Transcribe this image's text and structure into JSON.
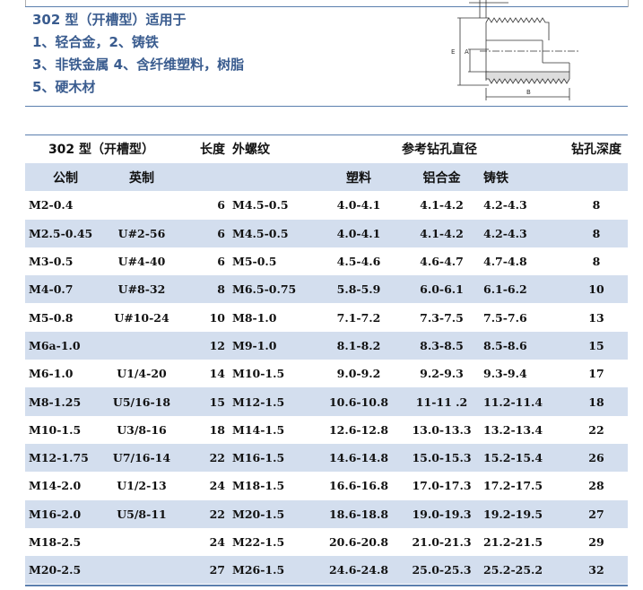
{
  "intro": {
    "lines": [
      "302 型（开槽型）适用于",
      "1、轻合金，2、铸铁",
      "3、非铁金属 4、含纤维塑料，树脂",
      "5、硬木材"
    ]
  },
  "diagram": {
    "labels": {
      "e": "E",
      "a": "A",
      "b": "B"
    }
  },
  "table": {
    "header1": [
      "302 型（开槽型）",
      "长度",
      "外螺纹",
      "参考钻孔直径",
      "钻孔深度"
    ],
    "header2": [
      "公制",
      "英制",
      "",
      "",
      "塑料",
      "铝合金",
      "铸铁",
      ""
    ],
    "rows": [
      [
        "M2-0.4",
        "",
        "6",
        "M4.5-0.5",
        "4.0-4.1",
        "4.1-4.2",
        "4.2-4.3",
        "8"
      ],
      [
        "M2.5-0.45",
        "U#2-56",
        "6",
        "M4.5-0.5",
        "4.0-4.1",
        "4.1-4.2",
        "4.2-4.3",
        "8"
      ],
      [
        "M3-0.5",
        "U#4-40",
        "6",
        "M5-0.5",
        "4.5-4.6",
        "4.6-4.7",
        "4.7-4.8",
        "8"
      ],
      [
        "M4-0.7",
        "U#8-32",
        "8",
        "M6.5-0.75",
        "5.8-5.9",
        "6.0-6.1",
        "6.1-6.2",
        "10"
      ],
      [
        "M5-0.8",
        "U#10-24",
        "10",
        "M8-1.0",
        "7.1-7.2",
        "7.3-7.5",
        "7.5-7.6",
        "13"
      ],
      [
        "M6a-1.0",
        "",
        "12",
        "M9-1.0",
        "8.1-8.2",
        "8.3-8.5",
        "8.5-8.6",
        "15"
      ],
      [
        "M6-1.0",
        "U1/4-20",
        "14",
        "M10-1.5",
        "9.0-9.2",
        "9.2-9.3",
        "9.3-9.4",
        "17"
      ],
      [
        "M8-1.25",
        "U5/16-18",
        "15",
        "M12-1.5",
        "10.6-10.8",
        "11-11 .2",
        "11.2-11.4",
        "18"
      ],
      [
        "M10-1.5",
        "U3/8-16",
        "18",
        "M14-1.5",
        "12.6-12.8",
        "13.0-13.3",
        "13.2-13.4",
        "22"
      ],
      [
        "M12-1.75",
        "U7/16-14",
        "22",
        "M16-1.5",
        "14.6-14.8",
        "15.0-15.3",
        "15.2-15.4",
        "26"
      ],
      [
        "M14-2.0",
        "U1/2-13",
        "24",
        "M18-1.5",
        "16.6-16.8",
        "17.0-17.3",
        "17.2-17.5",
        "28"
      ],
      [
        "M16-2.0",
        "U5/8-11",
        "22",
        "M20-1.5",
        "18.6-18.8",
        "19.0-19.3",
        "19.2-19.5",
        "27"
      ],
      [
        "M18-2.5",
        "",
        "24",
        "M22-1.5",
        "20.6-20.8",
        "21.0-21.3",
        "21.2-21.5",
        "29"
      ],
      [
        "M20-2.5",
        "",
        "27",
        "M26-1.5",
        "24.6-24.8",
        "25.0-25.3",
        "25.2-25.2",
        "32"
      ]
    ]
  },
  "colors": {
    "accent": "#3a5c8f",
    "row_band": "#d3deee",
    "rule": "#5b7fae"
  }
}
